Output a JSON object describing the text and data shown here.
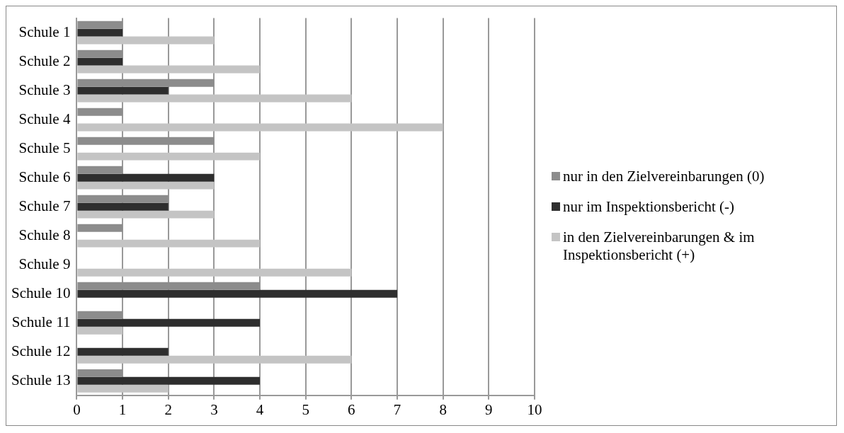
{
  "chart_data": {
    "type": "bar",
    "orientation": "horizontal",
    "categories": [
      "Schule 1",
      "Schule 2",
      "Schule 3",
      "Schule 4",
      "Schule 5",
      "Schule 6",
      "Schule 7",
      "Schule 8",
      "Schule 9",
      "Schule 10",
      "Schule 11",
      "Schule 12",
      "Schule 13"
    ],
    "series": [
      {
        "name": "nur in den Zielvereinbarungen (0)",
        "color": "#8c8c8c",
        "values": [
          1,
          1,
          3,
          1,
          3,
          1,
          2,
          1,
          0,
          4,
          1,
          0,
          1
        ]
      },
      {
        "name": "nur im Inspektionsbericht (-)",
        "color": "#2e2e2e",
        "values": [
          1,
          1,
          2,
          0,
          0,
          3,
          2,
          0,
          0,
          7,
          4,
          2,
          4
        ]
      },
      {
        "name": "in den Zielvereinbarungen & im Inspektionsbericht (+)",
        "color": "#c4c4c4",
        "values": [
          3,
          4,
          6,
          8,
          4,
          3,
          3,
          4,
          6,
          0,
          1,
          6,
          2
        ]
      }
    ],
    "xlim": [
      0,
      10
    ],
    "xticks": [
      0,
      1,
      2,
      3,
      4,
      5,
      6,
      7,
      8,
      9,
      10
    ],
    "grid": "x",
    "legend": "right"
  }
}
